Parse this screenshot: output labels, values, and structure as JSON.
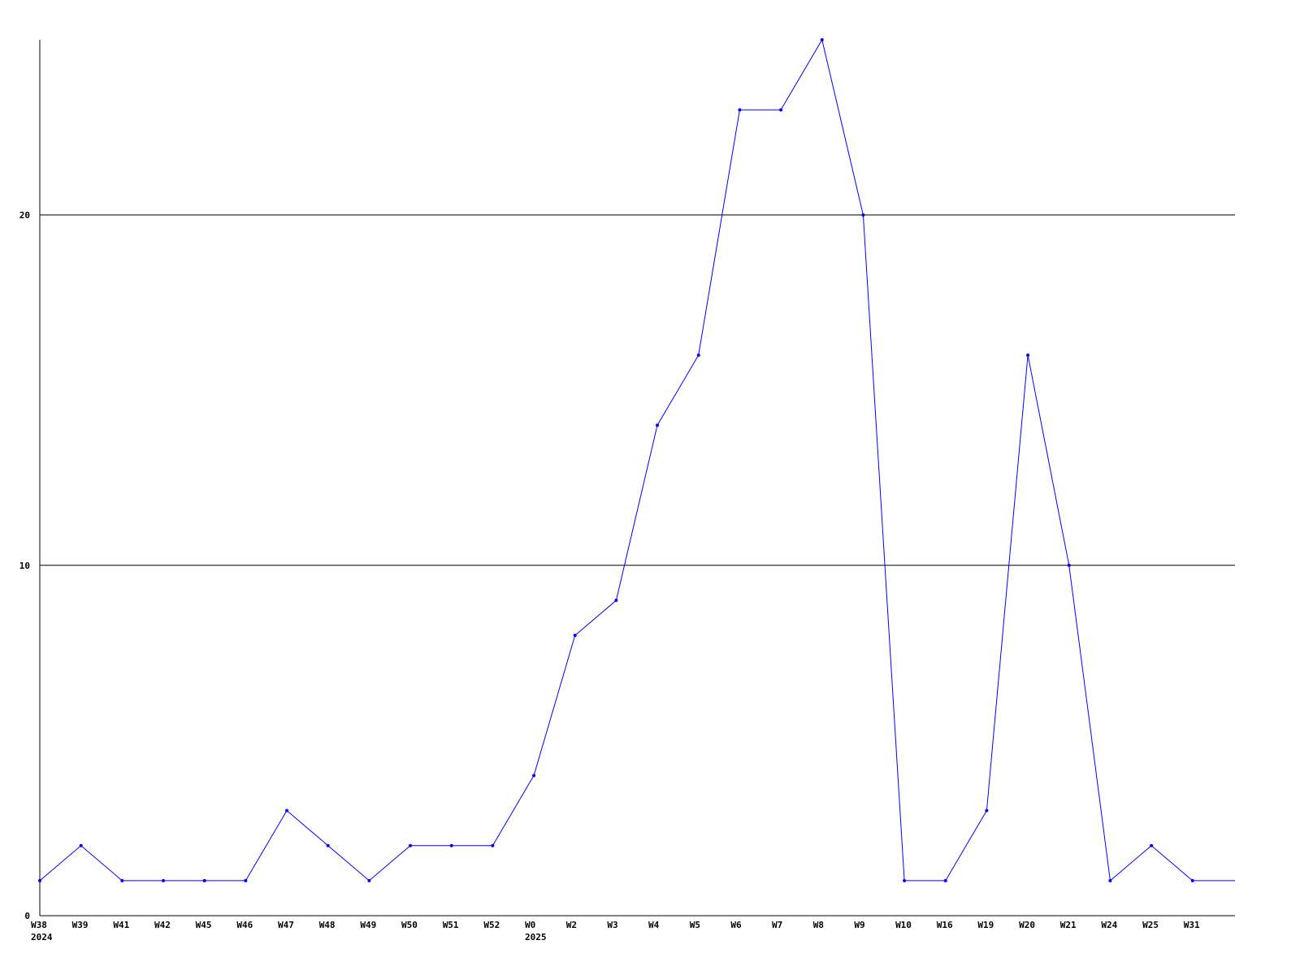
{
  "chart_data": {
    "type": "line",
    "title": "",
    "xlabel": "",
    "ylabel": "",
    "ylim": [
      0,
      25
    ],
    "yticks": [
      0,
      10,
      20
    ],
    "grid": "horizontal",
    "line_color": "#0000ff",
    "categories": [
      "W38",
      "W39",
      "W41",
      "W42",
      "W45",
      "W46",
      "W47",
      "W48",
      "W49",
      "W50",
      "W51",
      "W52",
      "W0",
      "W2",
      "W3",
      "W4",
      "W5",
      "W6",
      "W7",
      "W8",
      "W9",
      "W10",
      "W16",
      "W19",
      "W20",
      "W21",
      "W24",
      "W25",
      "W31"
    ],
    "year_labels": [
      {
        "at": "W38",
        "label": "2024"
      },
      {
        "at": "W0",
        "label": "2025"
      }
    ],
    "values": [
      1,
      2,
      1,
      1,
      1,
      1,
      3,
      2,
      1,
      2,
      2,
      2,
      4,
      8,
      9,
      14,
      16,
      23,
      23,
      25,
      20,
      1,
      1,
      3,
      16,
      10,
      1,
      2,
      1
    ],
    "trailing_value": 1
  }
}
